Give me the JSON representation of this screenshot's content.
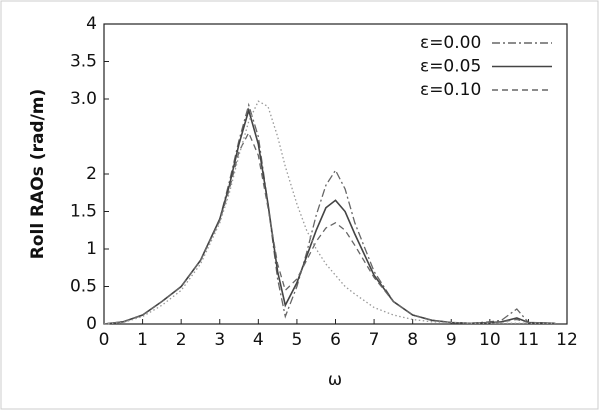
{
  "chart_data": {
    "type": "line",
    "xlabel": "ω",
    "ylabel": "Roll RAOs (rad/m)",
    "xlim": [
      0,
      12
    ],
    "ylim": [
      0,
      4
    ],
    "xticks": [
      0,
      1,
      2,
      3,
      4,
      5,
      6,
      7,
      8,
      9,
      10,
      11,
      12
    ],
    "yticks": [
      0,
      0.5,
      1,
      1.5,
      2,
      3.5,
      4,
      {
        "value": 3,
        "label": "3.0"
      }
    ],
    "legend": "top-right",
    "x": [
      0,
      0.5,
      1,
      1.5,
      2,
      2.5,
      3,
      3.25,
      3.5,
      3.75,
      4,
      4.25,
      4.5,
      4.7,
      5,
      5.25,
      5.5,
      5.75,
      6,
      6.25,
      6.5,
      7,
      7.5,
      8,
      8.5,
      9,
      9.5,
      10,
      10.3,
      10.7,
      11,
      11.7
    ],
    "series": [
      {
        "name": "ε=0.00",
        "color": "#666666",
        "style": "dashdot",
        "values": [
          0,
          0.03,
          0.12,
          0.3,
          0.5,
          0.85,
          1.4,
          1.9,
          2.45,
          2.92,
          2.5,
          1.6,
          0.6,
          0.1,
          0.5,
          0.95,
          1.45,
          1.85,
          2.05,
          1.8,
          1.35,
          0.7,
          0.3,
          0.12,
          0.05,
          0.02,
          0.01,
          0.03,
          0.05,
          0.2,
          0.02,
          0.01
        ]
      },
      {
        "name": "ε=0.05",
        "color": "#444444",
        "style": "solid",
        "values": [
          0,
          0.03,
          0.12,
          0.3,
          0.5,
          0.85,
          1.4,
          1.85,
          2.4,
          2.85,
          2.4,
          1.6,
          0.7,
          0.25,
          0.55,
          0.9,
          1.25,
          1.55,
          1.65,
          1.5,
          1.2,
          0.65,
          0.3,
          0.12,
          0.05,
          0.02,
          0.01,
          0.02,
          0.03,
          0.08,
          0.02,
          0.01
        ]
      },
      {
        "name": "ε=0.10",
        "color": "#666666",
        "style": "dashed",
        "values": [
          0,
          0.03,
          0.12,
          0.3,
          0.5,
          0.85,
          1.38,
          1.8,
          2.3,
          2.55,
          2.25,
          1.55,
          0.8,
          0.45,
          0.6,
          0.85,
          1.1,
          1.28,
          1.35,
          1.25,
          1.05,
          0.62,
          0.3,
          0.12,
          0.05,
          0.02,
          0.01,
          0.02,
          0.03,
          0.06,
          0.02,
          0.01
        ]
      },
      {
        "color": "#999999",
        "style": "dotted",
        "values": [
          0,
          0.02,
          0.1,
          0.25,
          0.45,
          0.8,
          1.35,
          1.75,
          2.25,
          2.7,
          2.97,
          2.9,
          2.5,
          2.1,
          1.6,
          1.25,
          1.0,
          0.8,
          0.65,
          0.5,
          0.4,
          0.22,
          0.12,
          0.06,
          0.03,
          0.02,
          0.01,
          0.01,
          0.01,
          0.01,
          0.01,
          0.01
        ]
      }
    ]
  }
}
